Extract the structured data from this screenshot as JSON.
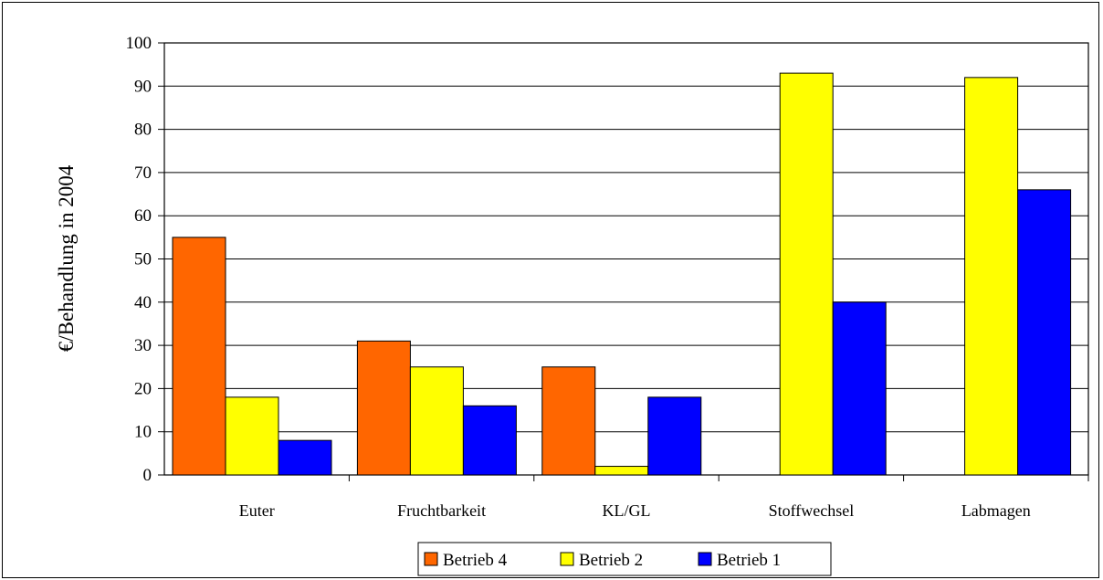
{
  "chart_data": {
    "type": "bar",
    "title": "",
    "xlabel": "",
    "ylabel": "€/Behandlung in 2004",
    "categories": [
      "Euter",
      "Fruchtbarkeit",
      "KL/GL",
      "Stoffwechsel",
      "Labmagen"
    ],
    "series": [
      {
        "name": "Betrieb 4",
        "color": "#ff6600",
        "values": [
          55,
          31,
          25,
          0,
          0
        ]
      },
      {
        "name": "Betrieb 2",
        "color": "#ffff00",
        "values": [
          18,
          25,
          2,
          93,
          92
        ]
      },
      {
        "name": "Betrieb 1",
        "color": "#0000ff",
        "values": [
          8,
          16,
          18,
          40,
          66
        ]
      }
    ],
    "ylim": [
      0,
      100
    ],
    "yticks": [
      0,
      10,
      20,
      30,
      40,
      50,
      60,
      70,
      80,
      90,
      100
    ],
    "grid": true,
    "legend_position": "bottom-center"
  }
}
